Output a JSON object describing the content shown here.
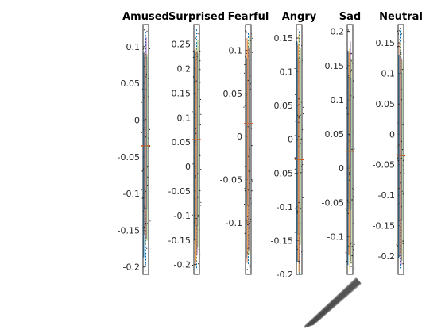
{
  "chart_data": [
    {
      "type": "box",
      "title": "Amused",
      "ylim": [
        -0.21,
        0.13
      ],
      "yticks": [
        {
          "v": 0.1,
          "label": "0.1"
        },
        {
          "v": 0.05,
          "label": "0.05"
        },
        {
          "v": 0,
          "label": "0"
        },
        {
          "v": -0.05,
          "label": "-0.05"
        },
        {
          "v": -0.1,
          "label": "-0.1"
        },
        {
          "v": -0.15,
          "label": "-0.15"
        },
        {
          "v": -0.2,
          "label": "-0.2"
        }
      ],
      "median": -0.035,
      "q1": -0.12,
      "q3": 0.085,
      "whisker_low": -0.2,
      "whisker_high": 0.12
    },
    {
      "type": "box",
      "title": "Surprised",
      "ylim": [
        -0.22,
        0.29
      ],
      "yticks": [
        {
          "v": 0.25,
          "label": "0.25"
        },
        {
          "v": 0.2,
          "label": "0.2"
        },
        {
          "v": 0.15,
          "label": "0.15"
        },
        {
          "v": 0.1,
          "label": "0.1"
        },
        {
          "v": 0.05,
          "label": "0.05"
        },
        {
          "v": 0,
          "label": "0"
        },
        {
          "v": -0.05,
          "label": "-0.05"
        },
        {
          "v": -0.1,
          "label": "-0.1"
        },
        {
          "v": -0.15,
          "label": "-0.15"
        },
        {
          "v": -0.2,
          "label": "-0.2"
        }
      ],
      "median": 0.055,
      "q1": -0.12,
      "q3": 0.23,
      "whisker_low": -0.21,
      "whisker_high": 0.28
    },
    {
      "type": "box",
      "title": "Fearful",
      "ylim": [
        -0.16,
        0.13
      ],
      "yticks": [
        {
          "v": 0.1,
          "label": "0.1"
        },
        {
          "v": 0.05,
          "label": "0.05"
        },
        {
          "v": 0,
          "label": "0"
        },
        {
          "v": -0.05,
          "label": "-0.05"
        },
        {
          "v": -0.1,
          "label": "-0.1"
        }
      ],
      "median": 0.015,
      "q1": -0.08,
      "q3": 0.09,
      "whisker_low": -0.15,
      "whisker_high": 0.12
    },
    {
      "type": "box",
      "title": "Angry",
      "ylim": [
        -0.2,
        0.17
      ],
      "yticks": [
        {
          "v": 0.15,
          "label": "0.15"
        },
        {
          "v": 0.1,
          "label": "0.1"
        },
        {
          "v": 0.05,
          "label": "0.05"
        },
        {
          "v": 0,
          "label": "0"
        },
        {
          "v": -0.05,
          "label": "-0.05"
        },
        {
          "v": -0.1,
          "label": "-0.1"
        },
        {
          "v": -0.15,
          "label": "-0.15"
        },
        {
          "v": -0.2,
          "label": "-0.2"
        }
      ],
      "median": -0.03,
      "q1": -0.14,
      "q3": 0.12,
      "whisker_low": -0.2,
      "whisker_high": 0.16
    },
    {
      "type": "box",
      "title": "Sad",
      "ylim": [
        -0.155,
        0.21
      ],
      "yticks": [
        {
          "v": 0.2,
          "label": "0.2"
        },
        {
          "v": 0.15,
          "label": "0.15"
        },
        {
          "v": 0.1,
          "label": "0.1"
        },
        {
          "v": 0.05,
          "label": "0.05"
        },
        {
          "v": 0,
          "label": "0"
        },
        {
          "v": -0.05,
          "label": "-0.05"
        },
        {
          "v": -0.1,
          "label": "-0.1"
        }
      ],
      "median": 0.025,
      "q1": -0.06,
      "q3": 0.13,
      "whisker_low": -0.15,
      "whisker_high": 0.2
    },
    {
      "type": "box",
      "title": "Neutral",
      "ylim": [
        -0.23,
        0.18
      ],
      "yticks": [
        {
          "v": 0.15,
          "label": "0.15"
        },
        {
          "v": 0.1,
          "label": "0.1"
        },
        {
          "v": 0.05,
          "label": "0.05"
        },
        {
          "v": 0,
          "label": "0"
        },
        {
          "v": -0.05,
          "label": "-0.05"
        },
        {
          "v": -0.1,
          "label": "-0.1"
        },
        {
          "v": -0.15,
          "label": "-0.15"
        },
        {
          "v": -0.2,
          "label": "-0.2"
        }
      ],
      "median": -0.035,
      "q1": -0.14,
      "q3": 0.1,
      "whisker_low": -0.22,
      "whisker_high": 0.17
    }
  ],
  "colors": {
    "axes": "#262626",
    "series": [
      "#0072bd",
      "#d95319",
      "#edb120",
      "#7e2f8e",
      "#77ac30",
      "#4dbeee",
      "#a2142f"
    ]
  }
}
